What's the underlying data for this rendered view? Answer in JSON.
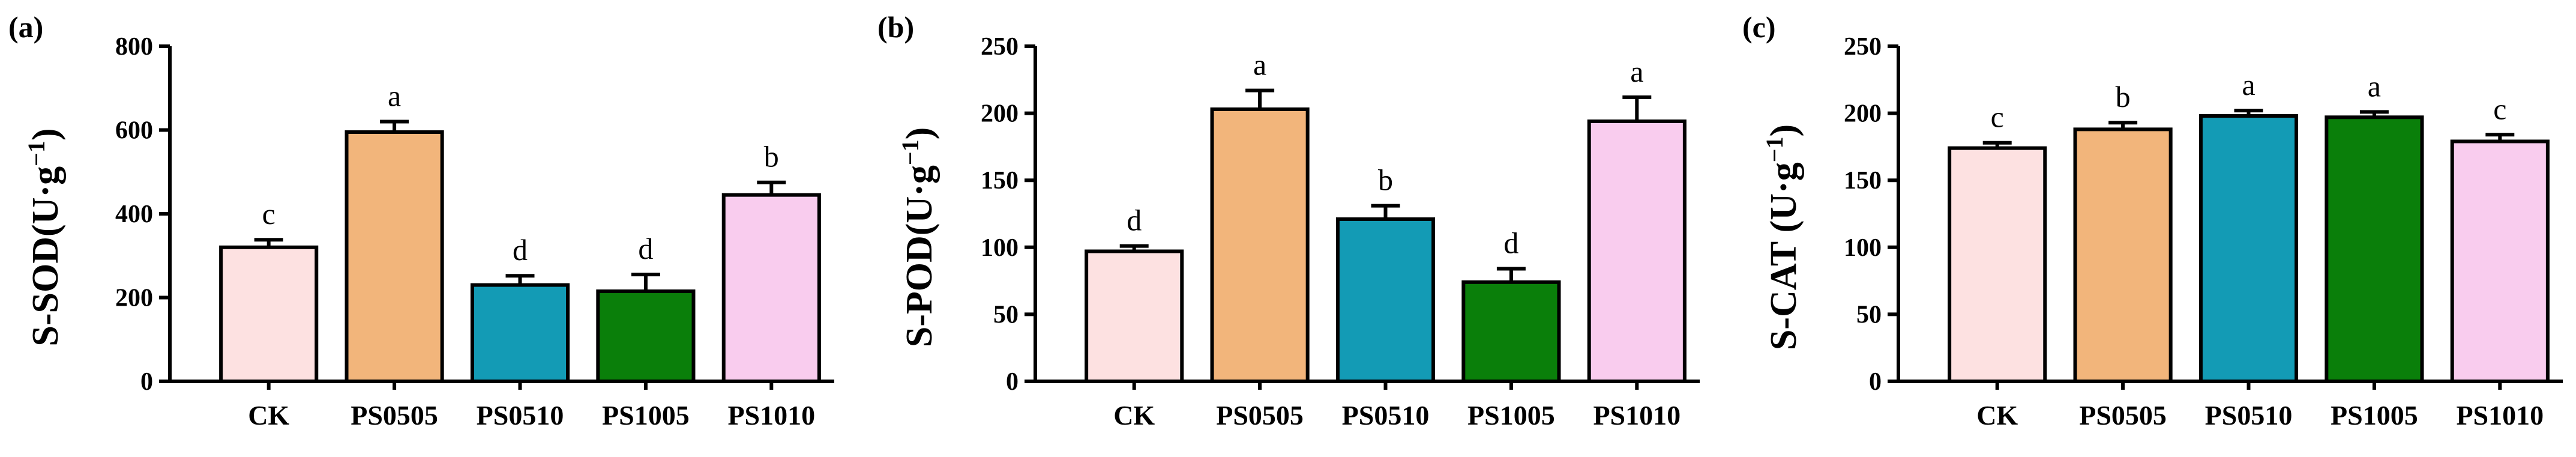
{
  "chart_data": [
    {
      "type": "bar",
      "panel_label": "(a)",
      "ylabel_main": "S-SOD(U·g",
      "ylabel_sup": "−1",
      "ylabel_close": ")",
      "categories": [
        "CK",
        "PS0505",
        "PS0510",
        "PS1005",
        "PS1010"
      ],
      "values": [
        320,
        595,
        230,
        215,
        445
      ],
      "errors": [
        18,
        25,
        22,
        40,
        30
      ],
      "letters": [
        "c",
        "a",
        "d",
        "d",
        "b"
      ],
      "ylim": [
        0,
        800
      ],
      "yticks": [
        "0",
        "200",
        "400",
        "600",
        "800"
      ],
      "colors": [
        "#fde1e1",
        "#f2b57b",
        "#139bb5",
        "#0a7f0a",
        "#f9ccee"
      ]
    },
    {
      "type": "bar",
      "panel_label": "(b)",
      "ylabel_main": "S-POD(U·g",
      "ylabel_sup": "−1",
      "ylabel_close": ")",
      "categories": [
        "CK",
        "PS0505",
        "PS0510",
        "PS1005",
        "PS1010"
      ],
      "values": [
        97,
        203,
        121,
        74,
        194
      ],
      "errors": [
        4,
        14,
        10,
        10,
        18
      ],
      "letters": [
        "d",
        "a",
        "b",
        "d",
        "a"
      ],
      "ylim": [
        0,
        250
      ],
      "yticks": [
        "0",
        "50",
        "100",
        "150",
        "200",
        "250"
      ],
      "colors": [
        "#fde1e1",
        "#f2b57b",
        "#139bb5",
        "#0a7f0a",
        "#f9ccee"
      ]
    },
    {
      "type": "bar",
      "panel_label": "(c)",
      "ylabel_main": "S-CAT (U·g",
      "ylabel_sup": "−1",
      "ylabel_close": ")",
      "categories": [
        "CK",
        "PS0505",
        "PS0510",
        "PS1005",
        "PS1010"
      ],
      "values": [
        174,
        188,
        198,
        197,
        179
      ],
      "errors": [
        4,
        5,
        4,
        4,
        5
      ],
      "letters": [
        "c",
        "b",
        "a",
        "a",
        "c"
      ],
      "ylim": [
        0,
        250
      ],
      "yticks": [
        "0",
        "50",
        "100",
        "150",
        "200",
        "250"
      ],
      "colors": [
        "#fde1e1",
        "#f2b57b",
        "#139bb5",
        "#0a7f0a",
        "#f9ccee"
      ]
    }
  ]
}
